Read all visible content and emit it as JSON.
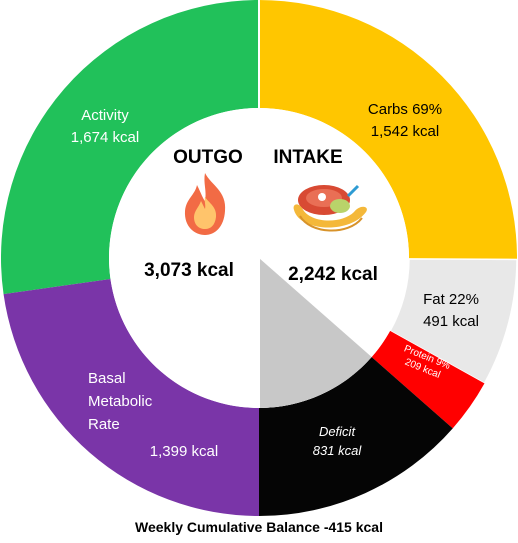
{
  "chart_data": {
    "type": "pie",
    "subtype": "nested-donut",
    "caption": "Weekly Cumulative Balance -415 kcal",
    "outgo": {
      "label": "OUTGO",
      "total": "3,073 kcal",
      "total_value": 3073,
      "icon": "fire-icon",
      "segments": [
        {
          "name": "Activity",
          "value": 1674,
          "value_label": "1,674 kcal",
          "color": "#21c15a"
        },
        {
          "name": "Basal Metabolic Rate",
          "name_lines": [
            "Basal",
            "Metabolic",
            "Rate"
          ],
          "value": 1399,
          "value_label": "1,399 kcal",
          "color": "#7a35a8"
        }
      ]
    },
    "intake": {
      "label": "INTAKE",
      "total": "2,242 kcal",
      "total_value": 2242,
      "icon": "food-icon",
      "segments": [
        {
          "name": "Carbs 69%",
          "value": 1542,
          "value_label": "1,542 kcal",
          "color": "#ffc600"
        },
        {
          "name": "Fat 22%",
          "value": 491,
          "value_label": "491 kcal",
          "color": "#e8e8e8"
        },
        {
          "name": "Protein 9%",
          "value": 209,
          "value_label": "209 kcal",
          "color": "#ff0000"
        }
      ],
      "deficit": {
        "name": "Deficit",
        "value": 831,
        "value_label": "831 kcal",
        "color": "#050505",
        "inner_color": "#c8c8c8"
      }
    }
  }
}
